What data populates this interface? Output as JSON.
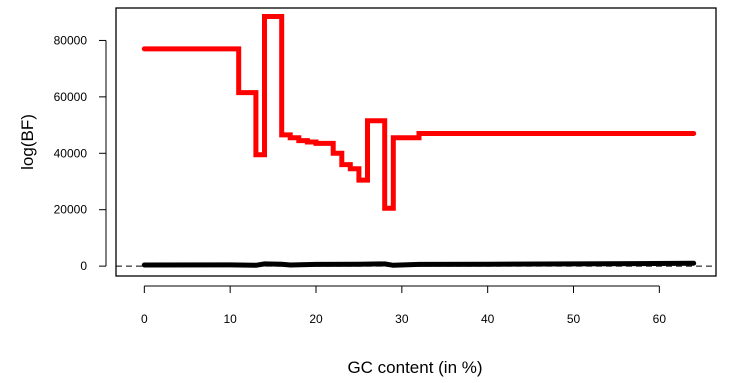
{
  "chart_data": {
    "type": "line",
    "xlabel": "GC content (in %)",
    "ylabel": "log(BF)",
    "xlim": [
      -3.3,
      66.6
    ],
    "ylim": [
      -3500,
      91500
    ],
    "xticks": [
      0,
      10,
      20,
      30,
      40,
      50,
      60
    ],
    "yticks": [
      0,
      20000,
      40000,
      60000,
      80000
    ],
    "grid": false,
    "legend": "none",
    "reference_line": {
      "y": 0,
      "style": "dashed",
      "color": "#000000"
    },
    "series": [
      {
        "color": "#ff0000",
        "step": true,
        "points": [
          [
            0,
            77000
          ],
          [
            11,
            77000
          ],
          [
            11,
            61500
          ],
          [
            13,
            61500
          ],
          [
            13,
            39500
          ],
          [
            14,
            39500
          ],
          [
            14,
            88500
          ],
          [
            16,
            88500
          ],
          [
            16,
            46500
          ],
          [
            17,
            46500
          ],
          [
            17,
            45500
          ],
          [
            18,
            45500
          ],
          [
            18,
            44500
          ],
          [
            19,
            44500
          ],
          [
            19,
            44000
          ],
          [
            20,
            44000
          ],
          [
            20,
            43500
          ],
          [
            22,
            43500
          ],
          [
            22,
            40000
          ],
          [
            23,
            40000
          ],
          [
            23,
            36000
          ],
          [
            24,
            36000
          ],
          [
            24,
            34500
          ],
          [
            25,
            34500
          ],
          [
            25,
            30500
          ],
          [
            26,
            30500
          ],
          [
            26,
            51500
          ],
          [
            28,
            51500
          ],
          [
            28,
            20500
          ],
          [
            29,
            20500
          ],
          [
            29,
            45500
          ],
          [
            32,
            45500
          ],
          [
            32,
            47000
          ],
          [
            64,
            47000
          ]
        ]
      },
      {
        "color": "#000000",
        "step": false,
        "points": [
          [
            0,
            400
          ],
          [
            10,
            450
          ],
          [
            13,
            300
          ],
          [
            14,
            800
          ],
          [
            16,
            700
          ],
          [
            17,
            400
          ],
          [
            20,
            600
          ],
          [
            25,
            700
          ],
          [
            28,
            800
          ],
          [
            29,
            300
          ],
          [
            32,
            600
          ],
          [
            40,
            700
          ],
          [
            50,
            800
          ],
          [
            64,
            1000
          ]
        ]
      }
    ]
  }
}
